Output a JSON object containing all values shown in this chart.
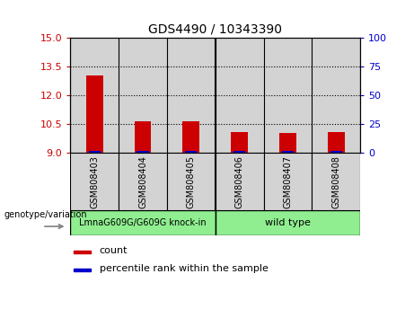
{
  "title": "GDS4490 / 10343390",
  "samples": [
    "GSM808403",
    "GSM808404",
    "GSM808405",
    "GSM808406",
    "GSM808407",
    "GSM808408"
  ],
  "count_values": [
    13.05,
    10.65,
    10.65,
    10.1,
    10.05,
    10.1
  ],
  "percentile_values": [
    0.05,
    0.05,
    0.05,
    0.05,
    0.05,
    0.05
  ],
  "bar_bottom": 9.0,
  "ylim_left": [
    9.0,
    15.0
  ],
  "ylim_right": [
    0,
    100
  ],
  "yticks_left": [
    9,
    10.5,
    12,
    13.5,
    15
  ],
  "yticks_right": [
    0,
    25,
    50,
    75,
    100
  ],
  "groups": [
    {
      "label": "LmnaG609G/G609G knock-in",
      "indices": [
        0,
        1,
        2
      ],
      "color": "#90EE90"
    },
    {
      "label": "wild type",
      "indices": [
        3,
        4,
        5
      ],
      "color": "#90EE90"
    }
  ],
  "group_label_prefix": "genotype/variation",
  "bar_color_count": "#cc0000",
  "bar_color_percentile": "#0000cc",
  "bar_width": 0.35,
  "tick_label_color_left": "#cc0000",
  "tick_label_color_right": "#0000cc",
  "grid_color": "black",
  "sample_area_color": "#d3d3d3",
  "legend_count_label": "count",
  "legend_percentile_label": "percentile rank within the sample"
}
